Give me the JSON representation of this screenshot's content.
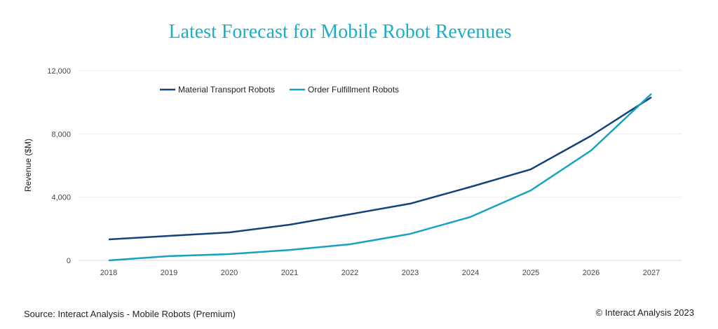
{
  "footer": {
    "source": "Source: Interact Analysis - Mobile Robots (Premium)",
    "copyright": "© Interact Analysis 2023"
  },
  "chart_data": {
    "type": "line",
    "title": "Latest Forecast for Mobile Robot Revenues",
    "xlabel": "",
    "ylabel": "Revenue ($M)",
    "ylim": [
      0,
      12000
    ],
    "yticks": [
      "0",
      "4,000",
      "8,000",
      "12,000"
    ],
    "ytick_values": [
      0,
      4000,
      8000,
      12000
    ],
    "grid": true,
    "legend_position": "top-left",
    "categories": [
      "2018",
      "2019",
      "2020",
      "2021",
      "2022",
      "2023",
      "2024",
      "2025",
      "2026",
      "2027"
    ],
    "series": [
      {
        "name": "Material Transport Robots",
        "color": "#13437a",
        "values": [
          1330,
          1550,
          1770,
          2260,
          2920,
          3590,
          4650,
          5760,
          7880,
          10320
        ]
      },
      {
        "name": "Order Fulfillment Robots",
        "color": "#17a2bf",
        "values": [
          0,
          270,
          400,
          660,
          1020,
          1680,
          2750,
          4430,
          6950,
          10540
        ]
      }
    ]
  }
}
